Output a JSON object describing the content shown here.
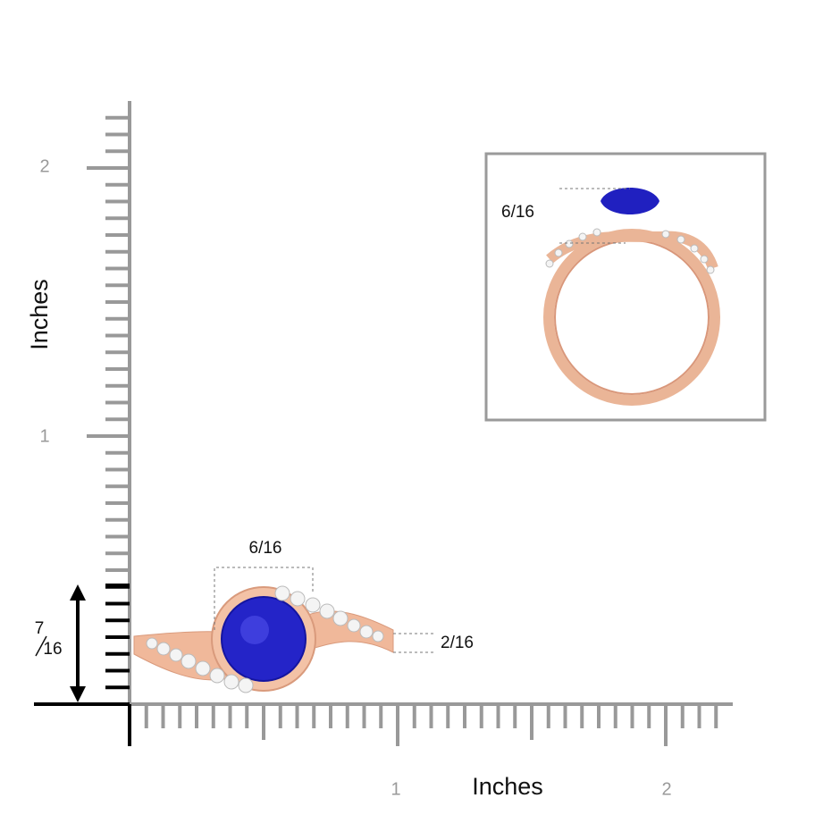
{
  "y_axis": {
    "title": "Inches",
    "labels": [
      "1",
      "2"
    ]
  },
  "x_axis": {
    "title": "Inches",
    "labels": [
      "1",
      "2"
    ]
  },
  "dimensions": {
    "top_width": "6/16",
    "band_height": "2/16",
    "total_height": {
      "numerator": "7",
      "denominator": "16"
    }
  },
  "inset": {
    "stone_height": "6/16"
  }
}
